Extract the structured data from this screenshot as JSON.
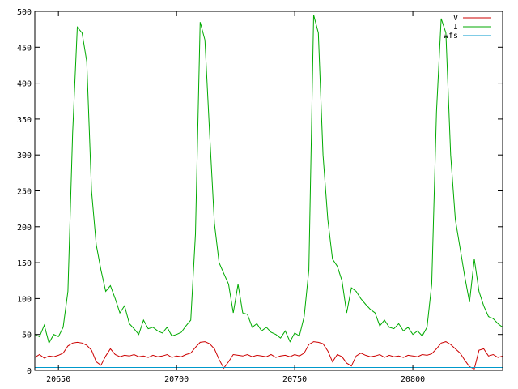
{
  "chart_data": {
    "type": "line",
    "title": "",
    "xlabel": "",
    "ylabel": "",
    "xlim": [
      20640,
      20838
    ],
    "ylim": [
      0,
      500
    ],
    "x_ticks": [
      20650,
      20700,
      20750,
      20800
    ],
    "y_ticks": [
      0,
      50,
      100,
      150,
      200,
      250,
      300,
      350,
      400,
      450,
      500
    ],
    "grid": false,
    "legend_position": "top-right",
    "series": [
      {
        "name": "V",
        "color": "#cc0000",
        "x": [
          20640,
          20642,
          20644,
          20646,
          20648,
          20650,
          20652,
          20654,
          20656,
          20658,
          20660,
          20662,
          20664,
          20666,
          20668,
          20670,
          20672,
          20674,
          20676,
          20678,
          20680,
          20682,
          20684,
          20686,
          20688,
          20690,
          20692,
          20694,
          20696,
          20698,
          20700,
          20702,
          20704,
          20706,
          20708,
          20710,
          20712,
          20714,
          20716,
          20718,
          20720,
          20722,
          20724,
          20726,
          20728,
          20730,
          20732,
          20734,
          20736,
          20738,
          20740,
          20742,
          20744,
          20746,
          20748,
          20750,
          20752,
          20754,
          20756,
          20758,
          20760,
          20762,
          20764,
          20766,
          20768,
          20770,
          20772,
          20774,
          20776,
          20778,
          20780,
          20782,
          20784,
          20786,
          20788,
          20790,
          20792,
          20794,
          20796,
          20798,
          20800,
          20802,
          20804,
          20806,
          20808,
          20810,
          20812,
          20814,
          20816,
          20818,
          20820,
          20822,
          20824,
          20826,
          20828,
          20830,
          20832,
          20834,
          20836,
          20838
        ],
        "values": [
          18,
          22,
          17,
          20,
          19,
          21,
          24,
          34,
          38,
          39,
          38,
          35,
          28,
          12,
          7,
          20,
          30,
          22,
          19,
          21,
          20,
          22,
          19,
          20,
          18,
          21,
          19,
          20,
          22,
          18,
          20,
          19,
          22,
          24,
          32,
          39,
          40,
          37,
          30,
          15,
          3,
          12,
          22,
          21,
          20,
          22,
          19,
          21,
          20,
          19,
          22,
          18,
          20,
          21,
          19,
          22,
          20,
          24,
          36,
          40,
          39,
          37,
          27,
          12,
          22,
          19,
          10,
          6,
          20,
          24,
          21,
          19,
          20,
          22,
          18,
          21,
          19,
          20,
          18,
          21,
          20,
          19,
          22,
          21,
          23,
          30,
          38,
          40,
          36,
          30,
          24,
          14,
          5,
          2,
          28,
          30,
          20,
          22,
          18,
          20
        ]
      },
      {
        "name": "I",
        "color": "#00aa00",
        "x": [
          20640,
          20642,
          20644,
          20646,
          20648,
          20650,
          20652,
          20654,
          20656,
          20658,
          20660,
          20662,
          20664,
          20666,
          20668,
          20670,
          20672,
          20674,
          20676,
          20678,
          20680,
          20682,
          20684,
          20686,
          20688,
          20690,
          20692,
          20694,
          20696,
          20698,
          20700,
          20702,
          20704,
          20706,
          20708,
          20710,
          20712,
          20714,
          20716,
          20718,
          20720,
          20722,
          20724,
          20726,
          20728,
          20730,
          20732,
          20734,
          20736,
          20738,
          20740,
          20742,
          20744,
          20746,
          20748,
          20750,
          20752,
          20754,
          20756,
          20758,
          20760,
          20762,
          20764,
          20766,
          20768,
          20770,
          20772,
          20774,
          20776,
          20778,
          20780,
          20782,
          20784,
          20786,
          20788,
          20790,
          20792,
          20794,
          20796,
          20798,
          20800,
          20802,
          20804,
          20806,
          20808,
          20810,
          20812,
          20814,
          20816,
          20818,
          20820,
          20822,
          20824,
          20826,
          20828,
          20830,
          20832,
          20834,
          20836,
          20838
        ],
        "values": [
          50,
          47,
          63,
          38,
          50,
          47,
          60,
          110,
          330,
          478,
          470,
          430,
          250,
          175,
          140,
          110,
          118,
          100,
          80,
          90,
          65,
          58,
          50,
          70,
          58,
          60,
          55,
          52,
          60,
          48,
          50,
          53,
          62,
          70,
          190,
          485,
          460,
          330,
          205,
          150,
          135,
          120,
          80,
          120,
          80,
          78,
          60,
          65,
          55,
          60,
          53,
          50,
          45,
          55,
          40,
          52,
          48,
          75,
          140,
          495,
          470,
          300,
          210,
          155,
          145,
          125,
          80,
          115,
          110,
          100,
          92,
          85,
          80,
          62,
          70,
          60,
          58,
          65,
          55,
          60,
          50,
          55,
          48,
          60,
          120,
          360,
          490,
          470,
          300,
          210,
          170,
          130,
          95,
          155,
          110,
          90,
          75,
          72,
          65,
          60
        ]
      },
      {
        "name": "wfs",
        "color": "#0099cc",
        "x": [
          20640,
          20838
        ],
        "values": [
          4,
          4
        ]
      }
    ]
  }
}
